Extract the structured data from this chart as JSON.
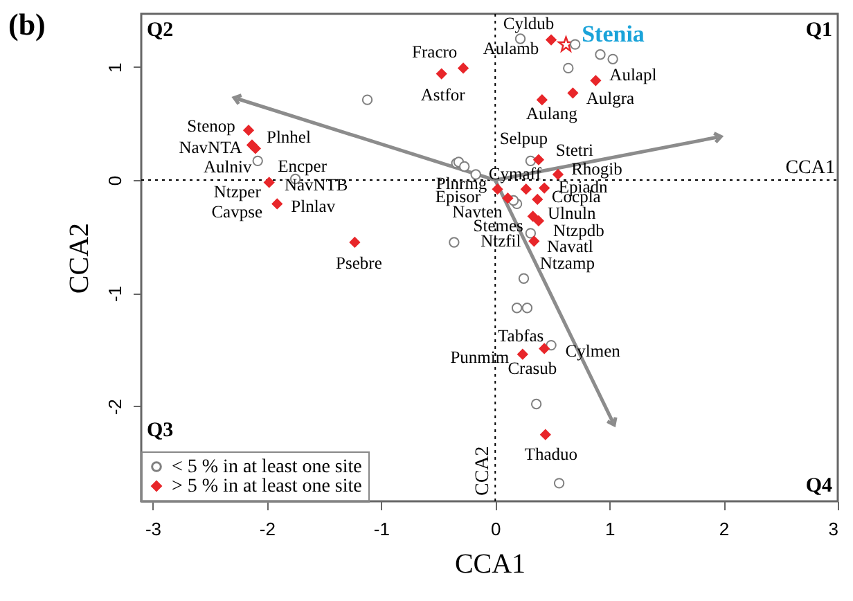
{
  "chart_data": {
    "type": "scatter",
    "title": "(b)",
    "xlabel": "CCA1",
    "ylabel": "CCA2",
    "xlim": [
      -3.1,
      3.0
    ],
    "ylim": [
      -2.84,
      1.47
    ],
    "xticks": [
      -3,
      -2,
      -1,
      0,
      1,
      2,
      3
    ],
    "yticks": [
      -2,
      -1,
      0,
      1
    ],
    "grid": false,
    "legend": "bottom left",
    "series": [
      {
        "name": "< 5 % in at least one site",
        "color": "#808080",
        "marker": "circle",
        "x": [
          -1.12,
          -2.08,
          -1.75,
          -0.34,
          -0.36,
          0.22,
          0.7,
          0.92,
          1.03,
          0.64,
          0.31,
          -0.32,
          -0.27,
          -0.17,
          0.19,
          0.16,
          0.31,
          0.25,
          0.19,
          0.28,
          0.49,
          0.36,
          0.56
        ],
        "values": [
          0.71,
          0.17,
          0.01,
          0.15,
          -0.55,
          1.25,
          1.2,
          1.11,
          1.07,
          0.99,
          0.17,
          0.16,
          0.12,
          0.05,
          -0.21,
          -0.18,
          -0.47,
          -0.87,
          -1.13,
          -1.13,
          -1.46,
          -1.98,
          -2.68
        ]
      },
      {
        "name": "> 5 % in at least one site",
        "color": "#e8262a",
        "marker": "diamond",
        "x": [
          -2.16,
          -2.13,
          -2.1,
          -1.98,
          -1.91,
          -1.23,
          -0.47,
          -0.28,
          0.49,
          0.88,
          0.68,
          0.41,
          0.38,
          0.55,
          0.02,
          0.27,
          0.43,
          0.11,
          0.37,
          0.33,
          0.38,
          0.34,
          0.24,
          0.43,
          0.44
        ],
        "values": [
          0.44,
          0.31,
          0.28,
          -0.02,
          -0.21,
          -0.55,
          0.94,
          0.99,
          1.24,
          0.88,
          0.77,
          0.71,
          0.18,
          0.05,
          -0.08,
          -0.08,
          -0.07,
          -0.16,
          -0.17,
          -0.32,
          -0.36,
          -0.54,
          -1.54,
          -1.49,
          -2.25
        ]
      },
      {
        "color": "#e8262a",
        "marker": "star",
        "x": [
          0.62
        ],
        "values": [
          1.2
        ]
      },
      {
        "type": "line",
        "color": "#8c8c8c",
        "x": [
          0,
          -2.26
        ],
        "values": [
          0,
          0.72
        ]
      },
      {
        "type": "line",
        "color": "#8c8c8c",
        "x": [
          0,
          1.95
        ],
        "values": [
          0,
          0.38
        ]
      },
      {
        "type": "line",
        "color": "#8c8c8c",
        "x": [
          0,
          1.03
        ],
        "values": [
          0,
          -2.14
        ]
      }
    ],
    "ref_lines": [
      {
        "axis": "y",
        "value": 0,
        "label": "CCA1",
        "line_style": "dotted",
        "color": "#000000"
      },
      {
        "axis": "x",
        "value": 0,
        "label": "CCA2",
        "line_style": "dotted",
        "color": "#000000"
      }
    ],
    "annotations": [
      "Q2",
      "Q1",
      "Q3",
      "Q4",
      {
        "text": "Stenia",
        "x": 0.62,
        "y": 1.2
      },
      {
        "text": "Fracro",
        "x": -0.47,
        "y": 0.94
      },
      {
        "text": "Astfor",
        "x": -0.47,
        "y": 0.94
      },
      {
        "text": "Stenop",
        "x": -2.16,
        "y": 0.44
      },
      {
        "text": "NavNTA",
        "x": -2.13,
        "y": 0.31
      },
      {
        "text": "Plnhel",
        "x": -2.1,
        "y": 0.28
      },
      {
        "text": "Encper",
        "x": -1.75,
        "y": 0.01
      },
      {
        "text": "Aulniv",
        "x": -1.98,
        "y": -0.02
      },
      {
        "text": "NavNTB",
        "x": -1.98,
        "y": -0.02
      },
      {
        "text": "Ntzper",
        "x": -1.98,
        "y": -0.02
      },
      {
        "text": "Plnlav",
        "x": -1.91,
        "y": -0.21
      },
      {
        "text": "Cavpse",
        "x": -1.91,
        "y": -0.21
      },
      {
        "text": "Psebre",
        "x": -1.23,
        "y": -0.55
      },
      {
        "text": "Cyldub",
        "x": 0.22,
        "y": 1.25
      },
      {
        "text": "Aulamb",
        "x": 0.49,
        "y": 1.24
      },
      {
        "text": "Aulapl",
        "x": 0.88,
        "y": 0.88
      },
      {
        "text": "Aulgra",
        "x": 0.68,
        "y": 0.77
      },
      {
        "text": "Aulang",
        "x": 0.41,
        "y": 0.71
      },
      {
        "text": "Selpup",
        "x": 0.31,
        "y": 0.17
      },
      {
        "text": "Stetri",
        "x": 0.38,
        "y": 0.18
      },
      {
        "text": "Rhogib",
        "x": 0.55,
        "y": 0.05
      },
      {
        "text": "Cymaff",
        "x": 0.27,
        "y": -0.08
      },
      {
        "text": "Plnrmg",
        "x": 0.02,
        "y": -0.08
      },
      {
        "text": "Epiadn",
        "x": 0.43,
        "y": -0.07
      },
      {
        "text": "Episor",
        "x": 0.11,
        "y": -0.16
      },
      {
        "text": "Cocpla",
        "x": 0.37,
        "y": -0.17
      },
      {
        "text": "Navten",
        "x": 0.11,
        "y": -0.16
      },
      {
        "text": "Ulnuln",
        "x": 0.33,
        "y": -0.32
      },
      {
        "text": "Stemes",
        "x": 0.33,
        "y": -0.32
      },
      {
        "text": "Ntzpdb",
        "x": 0.38,
        "y": -0.36
      },
      {
        "text": "Ntzfil",
        "x": 0.34,
        "y": -0.54
      },
      {
        "text": "Navatl",
        "x": 0.34,
        "y": -0.54
      },
      {
        "text": "Ntzamp",
        "x": 0.34,
        "y": -0.54
      },
      {
        "text": "Tabfas",
        "x": 0.43,
        "y": -1.49
      },
      {
        "text": "Punmim",
        "x": 0.24,
        "y": -1.54
      },
      {
        "text": "Cylmen",
        "x": 0.43,
        "y": -1.49
      },
      {
        "text": "Crasub",
        "x": 0.24,
        "y": -1.54
      },
      {
        "text": "Thaduo",
        "x": 0.44,
        "y": -2.25
      }
    ]
  }
}
